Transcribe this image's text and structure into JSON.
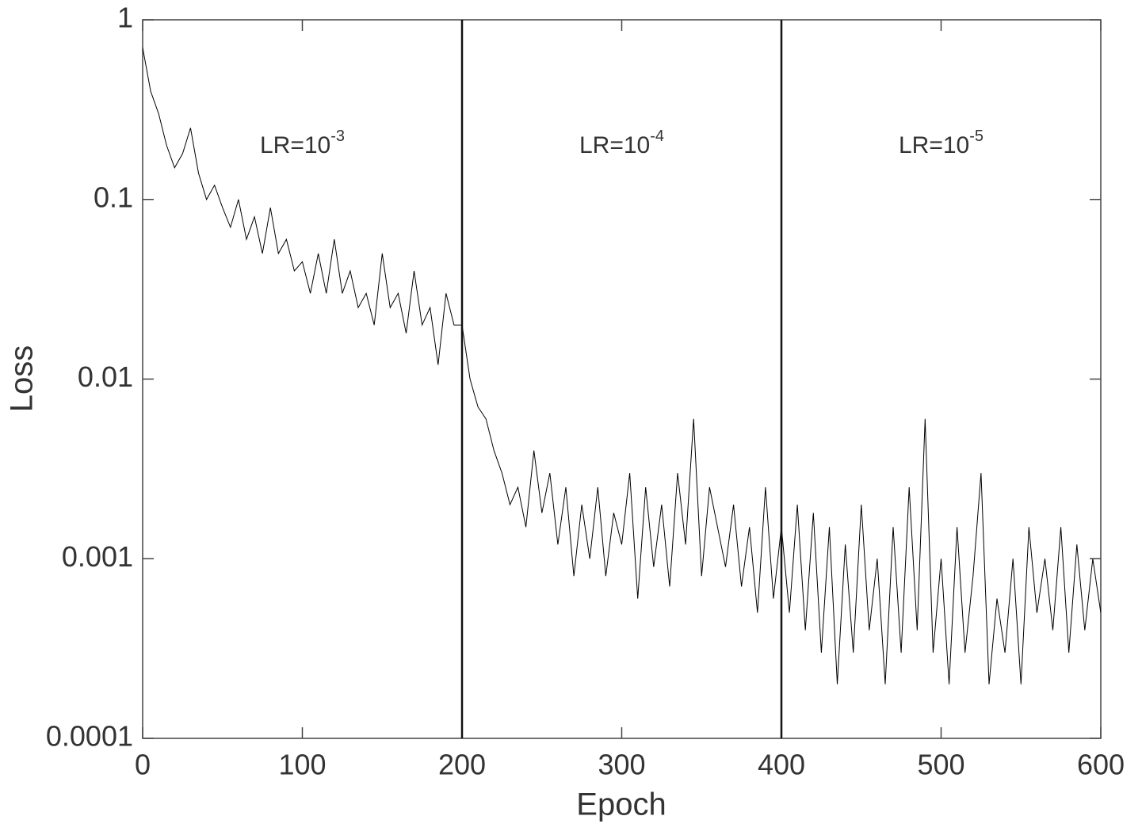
{
  "chart_data": {
    "type": "line",
    "x_label": "Epoch",
    "y_label": "Loss",
    "xlim": [
      0,
      600
    ],
    "xticks": [
      0,
      100,
      200,
      300,
      400,
      500,
      600
    ],
    "ylim": [
      0.0001,
      1
    ],
    "yticks": [
      0.0001,
      0.001,
      0.01,
      0.1,
      1
    ],
    "yscale": "log",
    "vlines": [
      200,
      400
    ],
    "annotations": [
      {
        "text": "LR=10",
        "sup": "-3",
        "x": 100
      },
      {
        "text": "LR=10",
        "sup": "-4",
        "x": 300
      },
      {
        "text": "LR=10",
        "sup": "-5",
        "x": 500
      }
    ],
    "series": [
      {
        "color": "#000000",
        "x": [
          0,
          5,
          10,
          15,
          20,
          25,
          30,
          35,
          40,
          45,
          50,
          55,
          60,
          65,
          70,
          75,
          80,
          85,
          90,
          95,
          100,
          105,
          110,
          115,
          120,
          125,
          130,
          135,
          140,
          145,
          150,
          155,
          160,
          165,
          170,
          175,
          180,
          185,
          190,
          195,
          200,
          205,
          210,
          215,
          220,
          225,
          230,
          235,
          240,
          245,
          250,
          255,
          260,
          265,
          270,
          275,
          280,
          285,
          290,
          295,
          300,
          305,
          310,
          315,
          320,
          325,
          330,
          335,
          340,
          345,
          350,
          355,
          360,
          365,
          370,
          375,
          380,
          385,
          390,
          395,
          400,
          405,
          410,
          415,
          420,
          425,
          430,
          435,
          440,
          445,
          450,
          455,
          460,
          465,
          470,
          475,
          480,
          485,
          490,
          495,
          500,
          505,
          510,
          515,
          520,
          525,
          530,
          535,
          540,
          545,
          550,
          555,
          560,
          565,
          570,
          575,
          580,
          585,
          590,
          595,
          600
        ],
        "values": [
          0.7,
          0.4,
          0.3,
          0.2,
          0.15,
          0.18,
          0.25,
          0.14,
          0.1,
          0.12,
          0.09,
          0.07,
          0.1,
          0.06,
          0.08,
          0.05,
          0.09,
          0.05,
          0.06,
          0.04,
          0.045,
          0.03,
          0.05,
          0.03,
          0.06,
          0.03,
          0.04,
          0.025,
          0.03,
          0.02,
          0.05,
          0.025,
          0.03,
          0.018,
          0.04,
          0.02,
          0.025,
          0.012,
          0.03,
          0.02,
          0.02,
          0.01,
          0.007,
          0.006,
          0.004,
          0.003,
          0.002,
          0.0025,
          0.0015,
          0.004,
          0.0018,
          0.003,
          0.0012,
          0.0025,
          0.0008,
          0.002,
          0.001,
          0.0025,
          0.0008,
          0.0018,
          0.0012,
          0.003,
          0.0006,
          0.0025,
          0.0009,
          0.002,
          0.0007,
          0.003,
          0.0012,
          0.006,
          0.0008,
          0.0025,
          0.0015,
          0.0009,
          0.002,
          0.0007,
          0.0015,
          0.0005,
          0.0025,
          0.0006,
          0.0015,
          0.0005,
          0.002,
          0.0004,
          0.0018,
          0.0003,
          0.0015,
          0.0002,
          0.0012,
          0.0003,
          0.002,
          0.0004,
          0.001,
          0.0002,
          0.0015,
          0.0003,
          0.0025,
          0.0004,
          0.006,
          0.0003,
          0.001,
          0.0002,
          0.0015,
          0.0003,
          0.0008,
          0.003,
          0.0002,
          0.0006,
          0.0003,
          0.001,
          0.0002,
          0.0015,
          0.0005,
          0.001,
          0.0004,
          0.0015,
          0.0003,
          0.0012,
          0.0004,
          0.001,
          0.0005
        ]
      }
    ]
  }
}
